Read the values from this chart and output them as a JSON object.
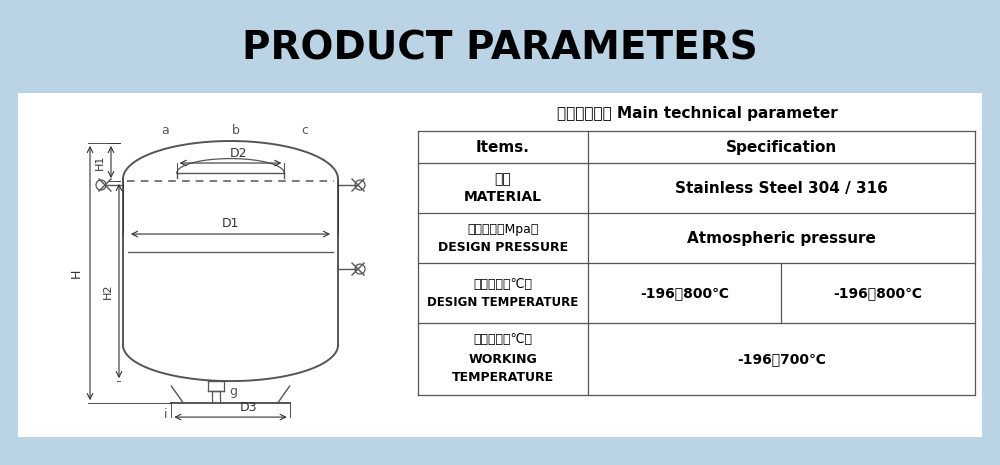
{
  "title": "PRODUCT PARAMETERS",
  "header_bg": "#bad4e6",
  "main_bg": "#bad4e6",
  "content_bg": "#ffffff",
  "table_title_cn": "主要技术参数",
  "table_title_en": " Main technical parameter",
  "col1_header": "Items.",
  "col2_header": "Specification",
  "row1_cn": "材质",
  "row1_en": "MATERIAL",
  "row1_val": "Stainless Steel 304 / 316",
  "row2_cn": "设计压力（Mpa）",
  "row2_en": "DESIGN PRESSURE",
  "row2_val": "Atmospheric pressure",
  "row3_cn": "设计温度（℃）",
  "row3_en": "DESIGN TEMPERATURE",
  "row3_val1": "-196～800℃",
  "row3_val2": "-196～800℃",
  "row4_cn": "工作温度（℃）",
  "row4_en1": "WORKING",
  "row4_en2": "TEMPERATURE",
  "row4_val": "-196～700℃",
  "label_a": "a",
  "label_b": "b",
  "label_c": "c",
  "label_D1": "D1",
  "label_D2": "D2",
  "label_D3": "D3",
  "label_H": "H",
  "label_H1": "H1",
  "label_H2": "H2",
  "label_g": "g",
  "label_i": "i",
  "tank_color": "#555555",
  "dim_color": "#333333"
}
